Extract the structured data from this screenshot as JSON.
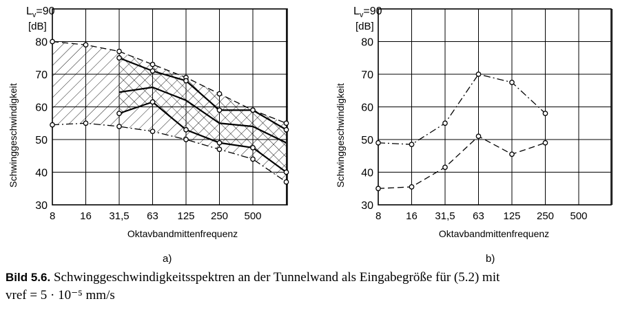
{
  "figure": {
    "caption_label": "Bild 5.6.",
    "caption_line1": "Schwinggeschwindigkeitsspektren an der Tunnelwand als Eingabegröße für (5.2) mit",
    "caption_line2": "vref = 5 · 10⁻⁵ mm/s"
  },
  "chart_data": [
    {
      "type": "line",
      "panel_label": "a)",
      "title": "",
      "xlabel": "Oktavbandmittenfrequenz",
      "ylabel": "Schwinggeschwindigkeit",
      "y_unit_label": "[dB]",
      "y_top_label": "Lv=90",
      "x_ticks": [
        "8",
        "16",
        "31,5",
        "63",
        "125",
        "250",
        "500",
        ""
      ],
      "y_ticks": [
        30,
        40,
        50,
        60,
        70,
        80
      ],
      "ylim": [
        30,
        90
      ],
      "grid": true,
      "envelope_upper": {
        "x": [
          0,
          1,
          2,
          3,
          4,
          5,
          6,
          7
        ],
        "values": [
          80,
          79,
          77,
          73,
          69,
          64,
          59,
          55
        ]
      },
      "envelope_lower": {
        "x": [
          0,
          1,
          2,
          3,
          4,
          5,
          6,
          7
        ],
        "values": [
          54.5,
          55,
          54,
          52.5,
          50,
          47,
          44,
          37
        ]
      },
      "series": [
        {
          "x": [
            0,
            1,
            2,
            3,
            4,
            5,
            6,
            7
          ],
          "values": [
            80,
            79,
            77,
            73,
            69,
            64,
            59,
            55
          ],
          "style": "dashed",
          "markers": true
        },
        {
          "x": [
            0,
            1,
            2,
            3,
            4,
            5,
            6,
            7
          ],
          "values": [
            54.5,
            55,
            54,
            52.5,
            50,
            47,
            44,
            37
          ],
          "style": "dashdot",
          "markers": true
        },
        {
          "x": [
            2,
            3,
            4,
            5,
            6,
            7
          ],
          "values": [
            75,
            71,
            68,
            59,
            59,
            53
          ],
          "style": "solid",
          "markers": true
        },
        {
          "x": [
            2,
            3,
            4,
            5,
            6,
            7
          ],
          "values": [
            64.5,
            66,
            62,
            55,
            54,
            49
          ],
          "style": "solid",
          "markers": false
        },
        {
          "x": [
            2,
            3,
            4,
            5,
            6,
            7
          ],
          "values": [
            58,
            61.5,
            53,
            49,
            47.5,
            40
          ],
          "style": "solid",
          "markers": true
        }
      ]
    },
    {
      "type": "line",
      "panel_label": "b)",
      "title": "",
      "xlabel": "Oktavbandmittenfrequenz",
      "ylabel": "Schwinggeschwindigkeit",
      "y_unit_label": "[dB]",
      "y_top_label": "Lv=90",
      "x_ticks": [
        "8",
        "16",
        "31,5",
        "63",
        "125",
        "250",
        "500",
        ""
      ],
      "y_ticks": [
        30,
        40,
        50,
        60,
        70,
        80
      ],
      "ylim": [
        30,
        90
      ],
      "grid": true,
      "series": [
        {
          "x": [
            0,
            1,
            2,
            3,
            4,
            5
          ],
          "values": [
            49,
            48.5,
            55,
            70,
            67.5,
            58
          ],
          "style": "dashdot",
          "markers": true
        },
        {
          "x": [
            0,
            1,
            2,
            3,
            4,
            5
          ],
          "values": [
            35,
            35.5,
            41.5,
            51,
            45.5,
            49
          ],
          "style": "dashed",
          "markers": true
        }
      ]
    }
  ]
}
